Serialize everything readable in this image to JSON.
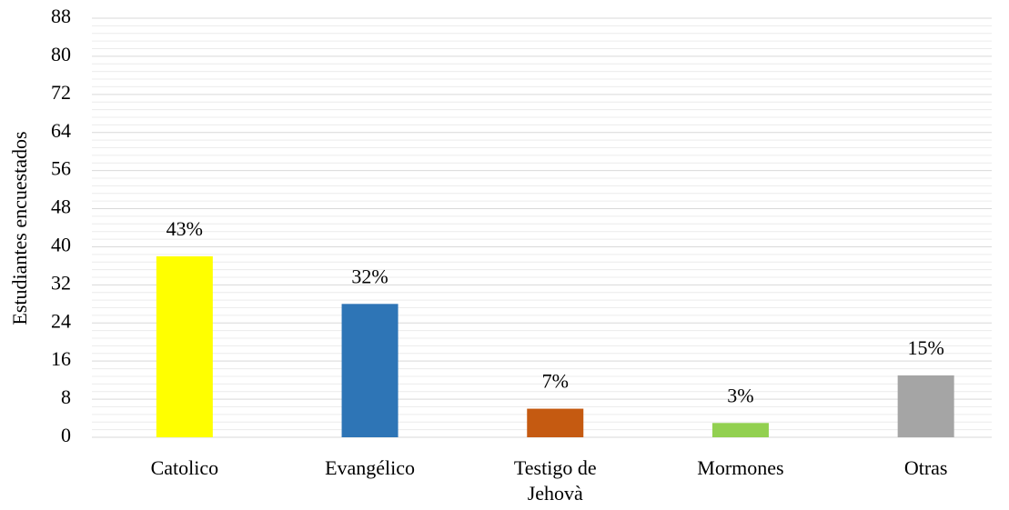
{
  "chart_data": {
    "type": "bar",
    "y_axis_label": "Estudiantes encuestados",
    "categories": [
      "Catolico",
      "Evangélico",
      "Testigo de Jehovà",
      "Mormones",
      "Otras"
    ],
    "values": [
      38,
      28,
      6,
      3,
      13
    ],
    "value_labels": [
      "43%",
      "32%",
      "7%",
      "3%",
      "15%"
    ],
    "colors": [
      "#ffff00",
      "#2e75b6",
      "#c55a11",
      "#92d050",
      "#a5a5a5"
    ],
    "ylim": [
      0,
      88
    ],
    "yticks": [
      0,
      8,
      16,
      24,
      32,
      40,
      48,
      56,
      64,
      72,
      80,
      88
    ],
    "grid": true
  }
}
